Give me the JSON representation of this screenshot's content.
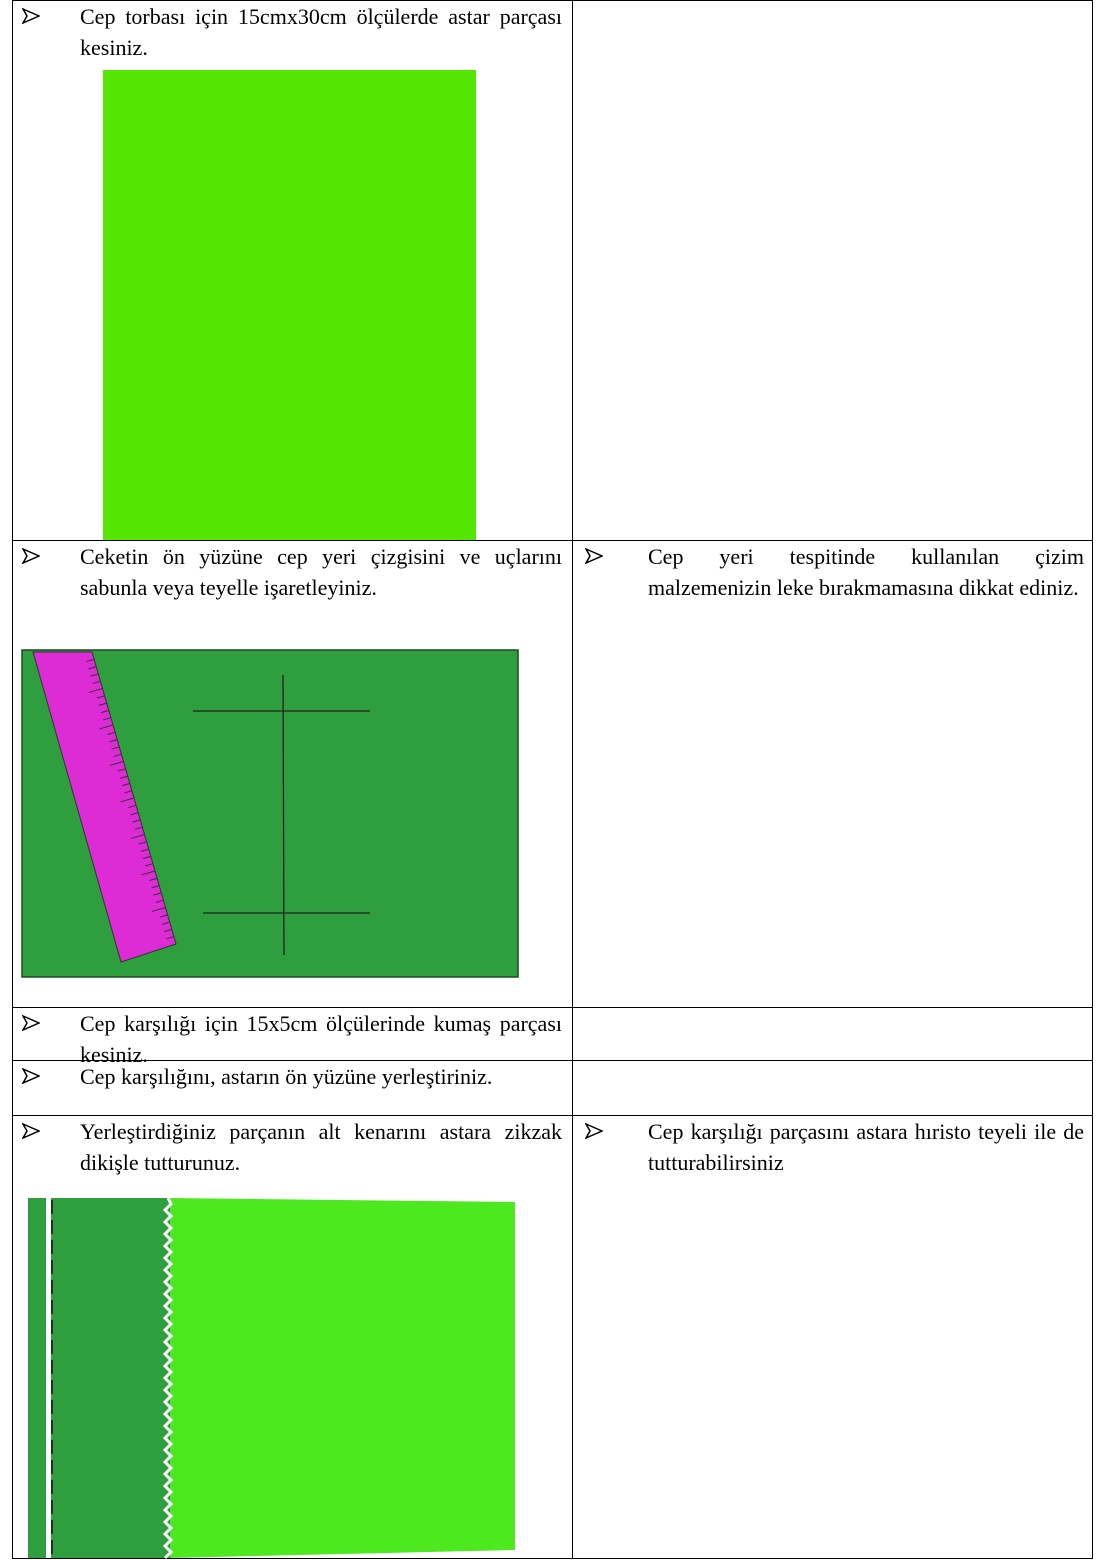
{
  "table": {
    "rows": [
      {
        "left": "Cep torbası için 15cmx30cm ölçülerde astar parçası kesiniz."
      },
      {
        "left": "Ceketin ön yüzüne cep yeri çizgisini ve uçlarını sabunla veya teyelle işaretleyiniz.",
        "right": "Cep yeri tespitinde kullanılan çizim malzemenizin leke bırakmamasına dikkat ediniz."
      },
      {
        "left": "Cep karşılığı için 15x5cm ölçülerinde kumaş parçası kesiniz."
      },
      {
        "left": "Cep karşılığını, astarın ön yüzüne yerleştiriniz."
      },
      {
        "left": "Yerleştirdiğiniz parçanın alt kenarını astara zikzak dikişle tutturunuz.",
        "right": "Cep karşılığı parçasını astara hıristo teyeli ile de tutturabilirsiniz"
      }
    ]
  }
}
